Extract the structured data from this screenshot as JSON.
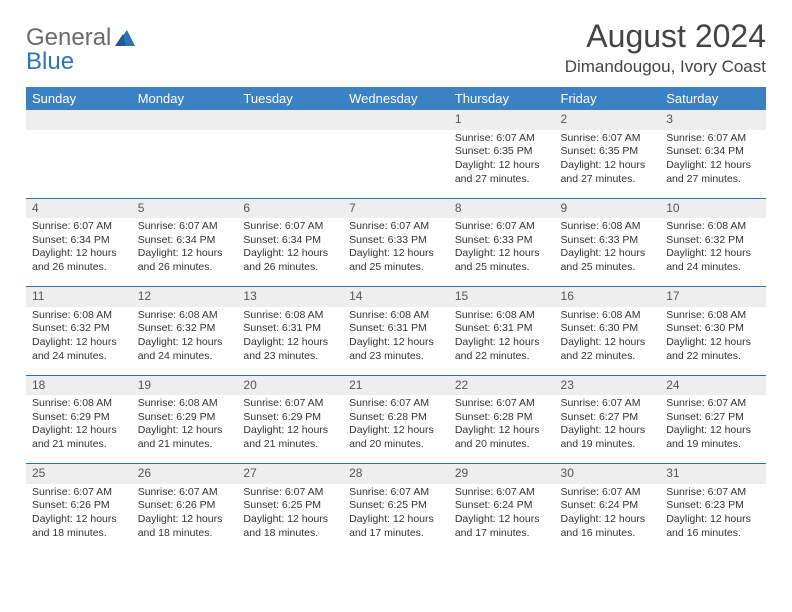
{
  "brand": {
    "part1": "General",
    "part2": "Blue"
  },
  "title": "August 2024",
  "location": "Dimandougou, Ivory Coast",
  "colors": {
    "header_bg": "#3b82c4",
    "header_text": "#ffffff",
    "daynum_bg": "#eeeeee",
    "rule": "#2e74b5",
    "body_text": "#333333"
  },
  "dayHeaders": [
    "Sunday",
    "Monday",
    "Tuesday",
    "Wednesday",
    "Thursday",
    "Friday",
    "Saturday"
  ],
  "weeks": [
    [
      null,
      null,
      null,
      null,
      {
        "n": "1",
        "sr": "6:07 AM",
        "ss": "6:35 PM",
        "dl": "12 hours and 27 minutes."
      },
      {
        "n": "2",
        "sr": "6:07 AM",
        "ss": "6:35 PM",
        "dl": "12 hours and 27 minutes."
      },
      {
        "n": "3",
        "sr": "6:07 AM",
        "ss": "6:34 PM",
        "dl": "12 hours and 27 minutes."
      }
    ],
    [
      {
        "n": "4",
        "sr": "6:07 AM",
        "ss": "6:34 PM",
        "dl": "12 hours and 26 minutes."
      },
      {
        "n": "5",
        "sr": "6:07 AM",
        "ss": "6:34 PM",
        "dl": "12 hours and 26 minutes."
      },
      {
        "n": "6",
        "sr": "6:07 AM",
        "ss": "6:34 PM",
        "dl": "12 hours and 26 minutes."
      },
      {
        "n": "7",
        "sr": "6:07 AM",
        "ss": "6:33 PM",
        "dl": "12 hours and 25 minutes."
      },
      {
        "n": "8",
        "sr": "6:07 AM",
        "ss": "6:33 PM",
        "dl": "12 hours and 25 minutes."
      },
      {
        "n": "9",
        "sr": "6:08 AM",
        "ss": "6:33 PM",
        "dl": "12 hours and 25 minutes."
      },
      {
        "n": "10",
        "sr": "6:08 AM",
        "ss": "6:32 PM",
        "dl": "12 hours and 24 minutes."
      }
    ],
    [
      {
        "n": "11",
        "sr": "6:08 AM",
        "ss": "6:32 PM",
        "dl": "12 hours and 24 minutes."
      },
      {
        "n": "12",
        "sr": "6:08 AM",
        "ss": "6:32 PM",
        "dl": "12 hours and 24 minutes."
      },
      {
        "n": "13",
        "sr": "6:08 AM",
        "ss": "6:31 PM",
        "dl": "12 hours and 23 minutes."
      },
      {
        "n": "14",
        "sr": "6:08 AM",
        "ss": "6:31 PM",
        "dl": "12 hours and 23 minutes."
      },
      {
        "n": "15",
        "sr": "6:08 AM",
        "ss": "6:31 PM",
        "dl": "12 hours and 22 minutes."
      },
      {
        "n": "16",
        "sr": "6:08 AM",
        "ss": "6:30 PM",
        "dl": "12 hours and 22 minutes."
      },
      {
        "n": "17",
        "sr": "6:08 AM",
        "ss": "6:30 PM",
        "dl": "12 hours and 22 minutes."
      }
    ],
    [
      {
        "n": "18",
        "sr": "6:08 AM",
        "ss": "6:29 PM",
        "dl": "12 hours and 21 minutes."
      },
      {
        "n": "19",
        "sr": "6:08 AM",
        "ss": "6:29 PM",
        "dl": "12 hours and 21 minutes."
      },
      {
        "n": "20",
        "sr": "6:07 AM",
        "ss": "6:29 PM",
        "dl": "12 hours and 21 minutes."
      },
      {
        "n": "21",
        "sr": "6:07 AM",
        "ss": "6:28 PM",
        "dl": "12 hours and 20 minutes."
      },
      {
        "n": "22",
        "sr": "6:07 AM",
        "ss": "6:28 PM",
        "dl": "12 hours and 20 minutes."
      },
      {
        "n": "23",
        "sr": "6:07 AM",
        "ss": "6:27 PM",
        "dl": "12 hours and 19 minutes."
      },
      {
        "n": "24",
        "sr": "6:07 AM",
        "ss": "6:27 PM",
        "dl": "12 hours and 19 minutes."
      }
    ],
    [
      {
        "n": "25",
        "sr": "6:07 AM",
        "ss": "6:26 PM",
        "dl": "12 hours and 18 minutes."
      },
      {
        "n": "26",
        "sr": "6:07 AM",
        "ss": "6:26 PM",
        "dl": "12 hours and 18 minutes."
      },
      {
        "n": "27",
        "sr": "6:07 AM",
        "ss": "6:25 PM",
        "dl": "12 hours and 18 minutes."
      },
      {
        "n": "28",
        "sr": "6:07 AM",
        "ss": "6:25 PM",
        "dl": "12 hours and 17 minutes."
      },
      {
        "n": "29",
        "sr": "6:07 AM",
        "ss": "6:24 PM",
        "dl": "12 hours and 17 minutes."
      },
      {
        "n": "30",
        "sr": "6:07 AM",
        "ss": "6:24 PM",
        "dl": "12 hours and 16 minutes."
      },
      {
        "n": "31",
        "sr": "6:07 AM",
        "ss": "6:23 PM",
        "dl": "12 hours and 16 minutes."
      }
    ]
  ],
  "labels": {
    "sunrise": "Sunrise:",
    "sunset": "Sunset:",
    "daylight": "Daylight:"
  }
}
